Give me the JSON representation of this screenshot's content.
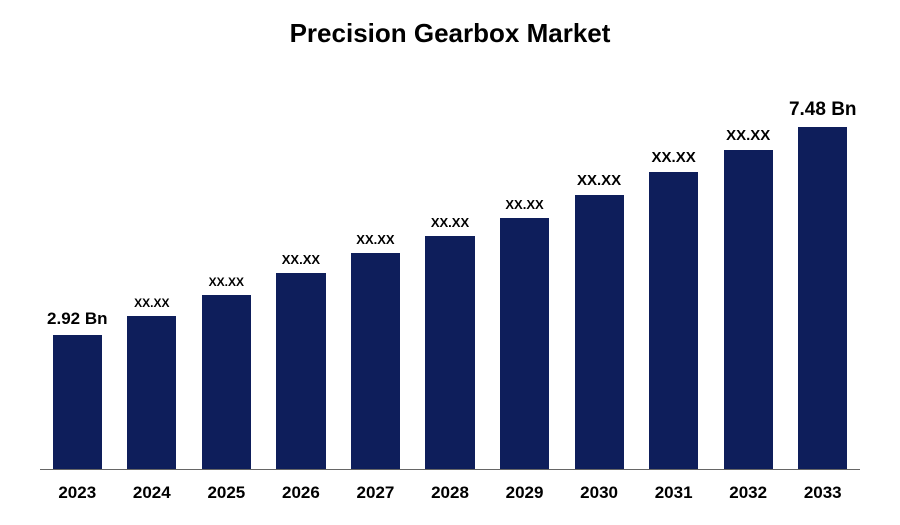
{
  "chart": {
    "type": "bar",
    "title": "Precision Gearbox Market",
    "title_fontsize": 26,
    "title_fontweight": 700,
    "title_color": "#000000",
    "background_color": "#ffffff",
    "axis_line_color": "#666666",
    "bar_color": "#0e1e5b",
    "bar_width_pct": 66,
    "ylim": [
      0,
      8.5
    ],
    "categories": [
      "2023",
      "2024",
      "2025",
      "2026",
      "2027",
      "2028",
      "2029",
      "2030",
      "2031",
      "2032",
      "2033"
    ],
    "values": [
      2.92,
      3.35,
      3.8,
      4.28,
      4.72,
      5.1,
      5.48,
      5.98,
      6.48,
      6.98,
      7.48
    ],
    "value_labels": [
      "2.92 Bn",
      "XX.XX",
      "XX.XX",
      "XX.XX",
      "XX.XX",
      "XX.XX",
      "XX.XX",
      "XX.XX",
      "XX.XX",
      "XX.XX",
      "7.48 Bn"
    ],
    "value_label_fontsizes": [
      17,
      12,
      12,
      13,
      13,
      13,
      13,
      15,
      15,
      15,
      19
    ],
    "value_label_fontweight": 700,
    "value_label_color": "#000000",
    "x_label_fontsize": 17,
    "x_label_fontweight": 700,
    "x_label_color": "#000000"
  }
}
